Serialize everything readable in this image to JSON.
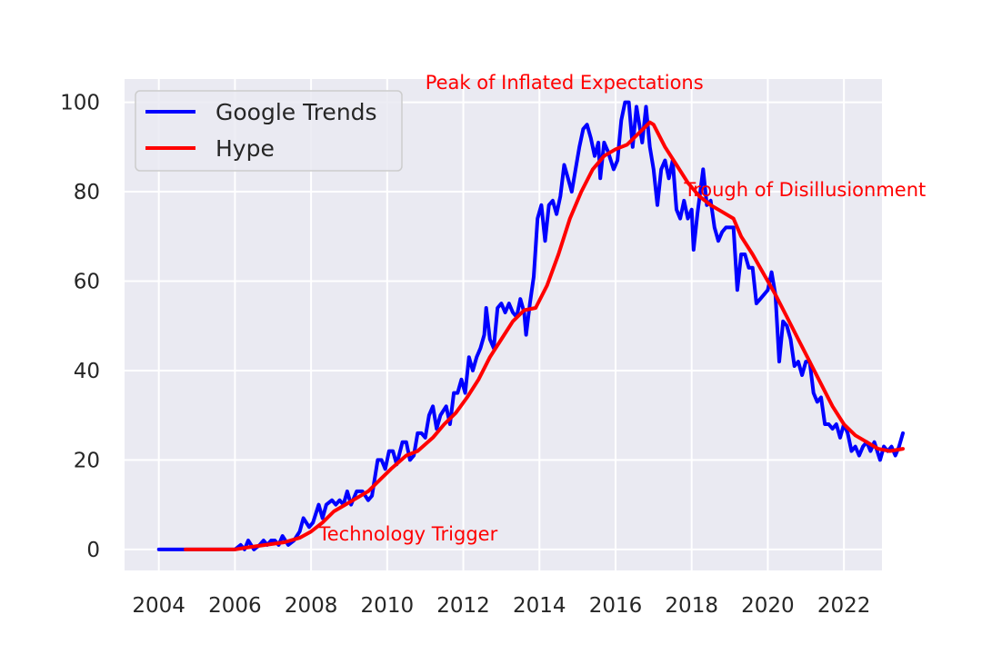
{
  "chart_data": {
    "type": "line",
    "title": "",
    "xlabel": "",
    "ylabel": "",
    "xlim": [
      2003.1,
      2023.0
    ],
    "ylim": [
      -4.7,
      105.2
    ],
    "x_ticks": [
      2004,
      2006,
      2008,
      2010,
      2012,
      2014,
      2016,
      2018,
      2020,
      2022
    ],
    "x_tick_labels": [
      "2004",
      "2006",
      "2008",
      "2010",
      "2012",
      "2014",
      "2016",
      "2018",
      "2020",
      "2022"
    ],
    "y_ticks": [
      0,
      20,
      40,
      60,
      80,
      100
    ],
    "y_tick_labels": [
      "0",
      "20",
      "40",
      "60",
      "80",
      "100"
    ],
    "grid": true,
    "legend": {
      "position": "upper-left",
      "entries": [
        "Google Trends",
        "Hype"
      ]
    },
    "series": [
      {
        "name": "Google Trends",
        "color": "#0000ff",
        "points": [
          [
            2004.0,
            0
          ],
          [
            2004.5,
            0
          ],
          [
            2005.0,
            0
          ],
          [
            2005.5,
            0
          ],
          [
            2006.0,
            0
          ],
          [
            2006.15,
            1
          ],
          [
            2006.25,
            0
          ],
          [
            2006.35,
            2
          ],
          [
            2006.5,
            0
          ],
          [
            2006.65,
            1
          ],
          [
            2006.75,
            2
          ],
          [
            2006.85,
            1
          ],
          [
            2006.95,
            2
          ],
          [
            2007.05,
            2
          ],
          [
            2007.15,
            1
          ],
          [
            2007.25,
            3
          ],
          [
            2007.4,
            1
          ],
          [
            2007.55,
            2
          ],
          [
            2007.7,
            4
          ],
          [
            2007.8,
            7
          ],
          [
            2007.95,
            5
          ],
          [
            2008.05,
            6
          ],
          [
            2008.2,
            10
          ],
          [
            2008.3,
            7
          ],
          [
            2008.4,
            10
          ],
          [
            2008.55,
            11
          ],
          [
            2008.65,
            10
          ],
          [
            2008.75,
            11
          ],
          [
            2008.85,
            10
          ],
          [
            2008.95,
            13
          ],
          [
            2009.05,
            10
          ],
          [
            2009.2,
            13
          ],
          [
            2009.35,
            13
          ],
          [
            2009.5,
            11
          ],
          [
            2009.6,
            12
          ],
          [
            2009.75,
            20
          ],
          [
            2009.85,
            20
          ],
          [
            2009.95,
            18
          ],
          [
            2010.05,
            22
          ],
          [
            2010.15,
            22
          ],
          [
            2010.25,
            19
          ],
          [
            2010.4,
            24
          ],
          [
            2010.5,
            24
          ],
          [
            2010.6,
            20
          ],
          [
            2010.7,
            21
          ],
          [
            2010.8,
            26
          ],
          [
            2010.9,
            26
          ],
          [
            2011.0,
            25
          ],
          [
            2011.1,
            30
          ],
          [
            2011.2,
            32
          ],
          [
            2011.3,
            27
          ],
          [
            2011.4,
            30
          ],
          [
            2011.55,
            32
          ],
          [
            2011.65,
            28
          ],
          [
            2011.75,
            35
          ],
          [
            2011.85,
            35
          ],
          [
            2011.95,
            38
          ],
          [
            2012.05,
            35
          ],
          [
            2012.15,
            43
          ],
          [
            2012.25,
            40
          ],
          [
            2012.35,
            43
          ],
          [
            2012.45,
            45
          ],
          [
            2012.55,
            48
          ],
          [
            2012.6,
            54
          ],
          [
            2012.7,
            47
          ],
          [
            2012.8,
            45
          ],
          [
            2012.9,
            54
          ],
          [
            2013.0,
            55
          ],
          [
            2013.1,
            53
          ],
          [
            2013.2,
            55
          ],
          [
            2013.3,
            53
          ],
          [
            2013.4,
            52
          ],
          [
            2013.5,
            56
          ],
          [
            2013.6,
            53
          ],
          [
            2013.65,
            48
          ],
          [
            2013.75,
            55
          ],
          [
            2013.85,
            61
          ],
          [
            2013.95,
            74
          ],
          [
            2014.05,
            77
          ],
          [
            2014.15,
            69
          ],
          [
            2014.25,
            77
          ],
          [
            2014.35,
            78
          ],
          [
            2014.45,
            75
          ],
          [
            2014.55,
            79
          ],
          [
            2014.65,
            86
          ],
          [
            2014.75,
            83
          ],
          [
            2014.85,
            80
          ],
          [
            2014.95,
            85
          ],
          [
            2015.05,
            90
          ],
          [
            2015.15,
            94
          ],
          [
            2015.25,
            95
          ],
          [
            2015.35,
            92
          ],
          [
            2015.45,
            88
          ],
          [
            2015.55,
            91
          ],
          [
            2015.6,
            83
          ],
          [
            2015.7,
            91
          ],
          [
            2015.8,
            89
          ],
          [
            2015.95,
            85
          ],
          [
            2016.05,
            87
          ],
          [
            2016.15,
            96
          ],
          [
            2016.25,
            100
          ],
          [
            2016.35,
            100
          ],
          [
            2016.45,
            90
          ],
          [
            2016.55,
            99
          ],
          [
            2016.7,
            91
          ],
          [
            2016.8,
            99
          ],
          [
            2016.9,
            90
          ],
          [
            2017.0,
            85
          ],
          [
            2017.1,
            77
          ],
          [
            2017.2,
            85
          ],
          [
            2017.3,
            87
          ],
          [
            2017.4,
            83
          ],
          [
            2017.5,
            87
          ],
          [
            2017.6,
            76
          ],
          [
            2017.7,
            74
          ],
          [
            2017.8,
            78
          ],
          [
            2017.9,
            74
          ],
          [
            2018.0,
            76
          ],
          [
            2018.05,
            67
          ],
          [
            2018.15,
            75
          ],
          [
            2018.3,
            85
          ],
          [
            2018.4,
            77
          ],
          [
            2018.5,
            78
          ],
          [
            2018.6,
            72
          ],
          [
            2018.7,
            69
          ],
          [
            2018.8,
            71
          ],
          [
            2018.9,
            72
          ],
          [
            2019.0,
            72
          ],
          [
            2019.1,
            72
          ],
          [
            2019.2,
            58
          ],
          [
            2019.3,
            66
          ],
          [
            2019.4,
            66
          ],
          [
            2019.5,
            63
          ],
          [
            2019.6,
            63
          ],
          [
            2019.7,
            55
          ],
          [
            2019.8,
            56
          ],
          [
            2019.9,
            57
          ],
          [
            2020.0,
            58
          ],
          [
            2020.1,
            62
          ],
          [
            2020.2,
            57
          ],
          [
            2020.3,
            42
          ],
          [
            2020.4,
            51
          ],
          [
            2020.5,
            50
          ],
          [
            2020.6,
            47
          ],
          [
            2020.7,
            41
          ],
          [
            2020.8,
            42
          ],
          [
            2020.9,
            39
          ],
          [
            2021.0,
            42
          ],
          [
            2021.1,
            42
          ],
          [
            2021.2,
            35
          ],
          [
            2021.3,
            33
          ],
          [
            2021.4,
            34
          ],
          [
            2021.5,
            28
          ],
          [
            2021.6,
            28
          ],
          [
            2021.7,
            27
          ],
          [
            2021.8,
            28
          ],
          [
            2021.9,
            25
          ],
          [
            2022.0,
            28
          ],
          [
            2022.1,
            26
          ],
          [
            2022.2,
            22
          ],
          [
            2022.3,
            23
          ],
          [
            2022.4,
            21
          ],
          [
            2022.5,
            23
          ],
          [
            2022.6,
            24
          ],
          [
            2022.7,
            22
          ],
          [
            2022.8,
            24
          ],
          [
            2022.95,
            20
          ],
          [
            2023.05,
            23
          ],
          [
            2023.15,
            22
          ],
          [
            2023.25,
            23
          ],
          [
            2023.35,
            21
          ],
          [
            2023.45,
            23
          ],
          [
            2023.55,
            26
          ]
        ]
      },
      {
        "name": "Hype",
        "color": "#ff0000",
        "points": [
          [
            2004.7,
            0
          ],
          [
            2005.5,
            0
          ],
          [
            2006.0,
            0
          ],
          [
            2006.3,
            0.4
          ],
          [
            2006.8,
            1
          ],
          [
            2007.3,
            1.6
          ],
          [
            2007.7,
            2.6
          ],
          [
            2008.0,
            4
          ],
          [
            2008.3,
            6
          ],
          [
            2008.6,
            8.5
          ],
          [
            2008.9,
            10
          ],
          [
            2009.2,
            11.5
          ],
          [
            2009.5,
            13
          ],
          [
            2009.8,
            15.5
          ],
          [
            2010.1,
            18
          ],
          [
            2010.5,
            21
          ],
          [
            2010.8,
            22
          ],
          [
            2011.2,
            25
          ],
          [
            2011.5,
            28
          ],
          [
            2011.8,
            30.5
          ],
          [
            2012.1,
            34
          ],
          [
            2012.4,
            38
          ],
          [
            2012.7,
            43
          ],
          [
            2013.0,
            47
          ],
          [
            2013.3,
            51
          ],
          [
            2013.6,
            53.5
          ],
          [
            2013.9,
            54
          ],
          [
            2014.2,
            59
          ],
          [
            2014.5,
            66
          ],
          [
            2014.8,
            74
          ],
          [
            2015.1,
            80
          ],
          [
            2015.4,
            85
          ],
          [
            2015.7,
            88
          ],
          [
            2016.0,
            89.5
          ],
          [
            2016.3,
            90.5
          ],
          [
            2016.6,
            93
          ],
          [
            2016.9,
            95.5
          ],
          [
            2017.0,
            95
          ],
          [
            2017.3,
            90
          ],
          [
            2017.6,
            86
          ],
          [
            2017.9,
            82
          ],
          [
            2018.2,
            79
          ],
          [
            2018.5,
            77
          ],
          [
            2018.8,
            75.5
          ],
          [
            2019.1,
            74
          ],
          [
            2019.3,
            70
          ],
          [
            2019.6,
            66
          ],
          [
            2019.9,
            61.5
          ],
          [
            2020.2,
            57
          ],
          [
            2020.5,
            52
          ],
          [
            2020.8,
            47
          ],
          [
            2021.1,
            42
          ],
          [
            2021.4,
            37
          ],
          [
            2021.7,
            32
          ],
          [
            2022.0,
            28
          ],
          [
            2022.3,
            25.5
          ],
          [
            2022.6,
            24
          ],
          [
            2022.9,
            22.5
          ],
          [
            2023.2,
            22
          ],
          [
            2023.55,
            22.5
          ]
        ]
      }
    ],
    "annotations": [
      {
        "text": "Technology Trigger",
        "x": 2008.2,
        "y": 2
      },
      {
        "text": "Peak of Inflated Expectations",
        "x": 2011.0,
        "y": 103
      },
      {
        "text": "Trough of Disillusionment",
        "x": 2017.8,
        "y": 79
      }
    ]
  }
}
